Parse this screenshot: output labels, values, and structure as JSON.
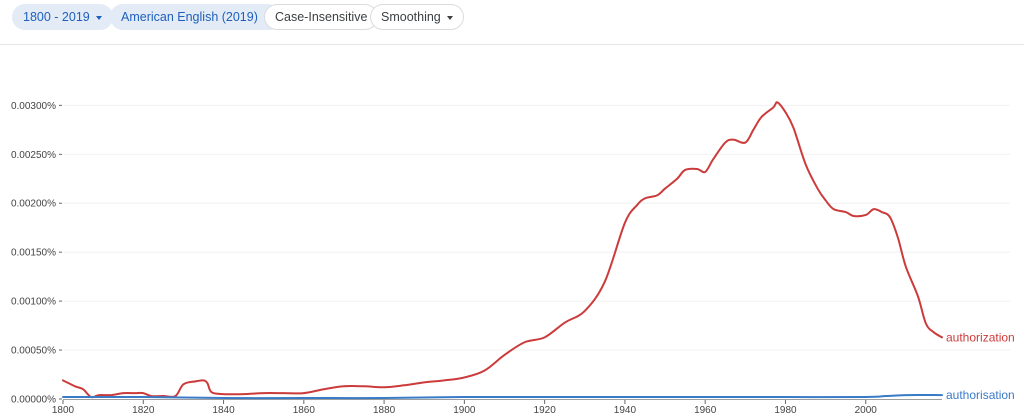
{
  "toolbar": {
    "year_range": "1800 - 2019",
    "corpus": "American English (2019)",
    "case_option": "Case-Insensitive",
    "smoothing": "Smoothing"
  },
  "colors": {
    "authorization": "#cc3b3b",
    "authorisation": "#3a7bc8",
    "chip_fill": "#e3ebf6",
    "chip_text": "#1f5fbd"
  },
  "icons": {
    "dropdown": "caret-down-icon"
  },
  "chart_data": {
    "type": "line",
    "xlabel": "",
    "ylabel": "",
    "xlim": [
      1800,
      2019
    ],
    "ylim": [
      0,
      0.0033
    ],
    "grid": true,
    "legend": "end-of-line labels",
    "x_ticks": [
      1800,
      1820,
      1840,
      1860,
      1880,
      1900,
      1920,
      1940,
      1960,
      1980,
      2000
    ],
    "y_ticks": [
      {
        "value": 0,
        "label": "0.00000%"
      },
      {
        "value": 0.0005,
        "label": "0.00050%"
      },
      {
        "value": 0.001,
        "label": "0.00100%"
      },
      {
        "value": 0.0015,
        "label": "0.00150%"
      },
      {
        "value": 0.002,
        "label": "0.00200%"
      },
      {
        "value": 0.0025,
        "label": "0.00250%"
      },
      {
        "value": 0.003,
        "label": "0.00300%"
      }
    ],
    "series": [
      {
        "name": "authorization",
        "color": "#cc3b3b",
        "points": [
          [
            1800,
            0.00019
          ],
          [
            1803,
            0.00013
          ],
          [
            1805,
            0.0001
          ],
          [
            1807,
            2e-05
          ],
          [
            1809,
            4e-05
          ],
          [
            1812,
            4e-05
          ],
          [
            1815,
            6e-05
          ],
          [
            1818,
            6e-05
          ],
          [
            1820,
            6e-05
          ],
          [
            1822,
            3e-05
          ],
          [
            1825,
            3e-05
          ],
          [
            1828,
            3e-05
          ],
          [
            1830,
            0.00015
          ],
          [
            1833,
            0.00018
          ],
          [
            1835,
            0.00019
          ],
          [
            1836,
            0.00016
          ],
          [
            1837,
            7e-05
          ],
          [
            1840,
            5e-05
          ],
          [
            1845,
            5e-05
          ],
          [
            1850,
            6e-05
          ],
          [
            1855,
            6e-05
          ],
          [
            1860,
            6e-05
          ],
          [
            1865,
            0.0001
          ],
          [
            1870,
            0.00013
          ],
          [
            1875,
            0.00013
          ],
          [
            1880,
            0.00012
          ],
          [
            1885,
            0.00014
          ],
          [
            1890,
            0.00017
          ],
          [
            1895,
            0.00019
          ],
          [
            1900,
            0.00022
          ],
          [
            1905,
            0.00029
          ],
          [
            1910,
            0.00045
          ],
          [
            1915,
            0.00058
          ],
          [
            1920,
            0.00063
          ],
          [
            1925,
            0.00078
          ],
          [
            1930,
            0.0009
          ],
          [
            1935,
            0.0012
          ],
          [
            1940,
            0.0018
          ],
          [
            1943,
            0.00198
          ],
          [
            1945,
            0.00205
          ],
          [
            1948,
            0.00208
          ],
          [
            1950,
            0.00215
          ],
          [
            1953,
            0.00225
          ],
          [
            1955,
            0.00234
          ],
          [
            1958,
            0.00235
          ],
          [
            1960,
            0.00232
          ],
          [
            1962,
            0.00245
          ],
          [
            1965,
            0.00262
          ],
          [
            1967,
            0.00265
          ],
          [
            1970,
            0.00262
          ],
          [
            1972,
            0.00275
          ],
          [
            1974,
            0.00288
          ],
          [
            1977,
            0.00298
          ],
          [
            1978,
            0.00303
          ],
          [
            1980,
            0.00293
          ],
          [
            1982,
            0.00277
          ],
          [
            1985,
            0.0024
          ],
          [
            1988,
            0.00215
          ],
          [
            1990,
            0.00203
          ],
          [
            1992,
            0.00194
          ],
          [
            1995,
            0.00191
          ],
          [
            1997,
            0.00187
          ],
          [
            2000,
            0.00188
          ],
          [
            2002,
            0.00194
          ],
          [
            2004,
            0.00191
          ],
          [
            2006,
            0.00186
          ],
          [
            2008,
            0.00165
          ],
          [
            2010,
            0.00135
          ],
          [
            2013,
            0.00105
          ],
          [
            2015,
            0.00077
          ],
          [
            2017,
            0.00068
          ],
          [
            2019,
            0.00063
          ]
        ]
      },
      {
        "name": "authorisation",
        "color": "#3a7bc8",
        "points": [
          [
            1800,
            2e-05
          ],
          [
            1820,
            2e-05
          ],
          [
            1840,
            1e-05
          ],
          [
            1860,
            1e-05
          ],
          [
            1880,
            1e-05
          ],
          [
            1900,
            2e-05
          ],
          [
            1920,
            2e-05
          ],
          [
            1940,
            2e-05
          ],
          [
            1960,
            2e-05
          ],
          [
            1980,
            2e-05
          ],
          [
            2000,
            2e-05
          ],
          [
            2005,
            3e-05
          ],
          [
            2010,
            4e-05
          ],
          [
            2019,
            4e-05
          ]
        ]
      }
    ]
  }
}
